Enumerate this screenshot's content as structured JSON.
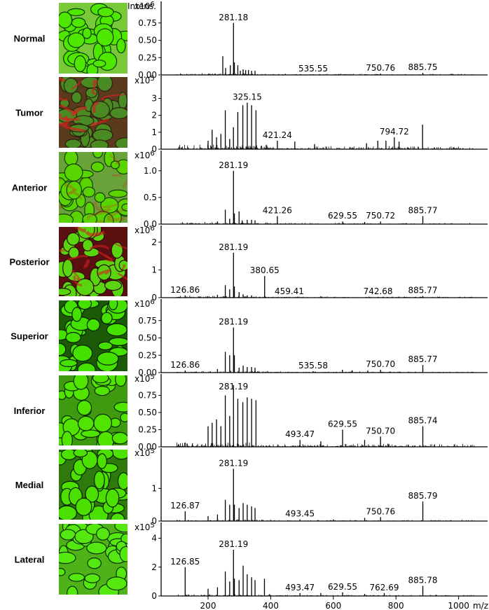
{
  "figure": {
    "intensity_label": "Intens.",
    "mz_label": "m/z"
  },
  "chart_data": [
    {
      "type": "bar",
      "title": "Normal",
      "ylabel": "Intens.",
      "y_exponent": "x10",
      "y_exponent_power": "6",
      "ylim": [
        0,
        1.0
      ],
      "y_ticks": [
        0.0,
        0.25,
        0.5,
        0.75
      ],
      "y_tick_labels": [
        "0.00",
        "0.25",
        "0.50",
        "0.75"
      ],
      "xlim": [
        40,
        1060
      ],
      "series": [
        {
          "name": "Normal",
          "x": [
            247,
            256,
            271,
            281.18,
            284,
            295,
            303,
            312,
            320,
            329,
            339,
            350,
            535.55,
            620,
            700,
            750.76,
            885.75
          ],
          "values": [
            0.27,
            0.1,
            0.14,
            0.75,
            0.18,
            0.14,
            0.06,
            0.08,
            0.07,
            0.07,
            0.06,
            0.06,
            0.01,
            0.01,
            0.01,
            0.02,
            0.03
          ]
        }
      ],
      "peak_labels": [
        {
          "x": 281.18,
          "text": "281.18"
        },
        {
          "x": 535.55,
          "text": "535.55"
        },
        {
          "x": 750.76,
          "text": "750.76"
        },
        {
          "x": 885.75,
          "text": "885.75"
        }
      ]
    },
    {
      "type": "bar",
      "title": "Tumor",
      "ylabel": "Intens.",
      "y_exponent": "x10",
      "y_exponent_power": "5",
      "ylim": [
        0,
        4.1
      ],
      "y_ticks": [
        0,
        1,
        2,
        3
      ],
      "y_tick_labels": [
        "0",
        "1",
        "2",
        "3"
      ],
      "xlim": [
        40,
        1060
      ],
      "series": [
        {
          "name": "Tumor",
          "x": [
            200,
            213,
            227,
            241,
            255,
            269,
            281,
            295,
            311,
            325.15,
            339,
            353,
            421.24,
            477,
            540,
            706,
            742,
            768,
            794.72,
            810,
            885
          ],
          "values": [
            0.5,
            1.15,
            0.7,
            0.9,
            2.3,
            0.6,
            1.3,
            2.2,
            2.6,
            2.75,
            2.6,
            2.3,
            0.5,
            0.45,
            0.3,
            0.35,
            0.5,
            0.5,
            0.7,
            0.45,
            1.45
          ]
        }
      ],
      "peak_labels": [
        {
          "x": 325.15,
          "text": "325.15"
        },
        {
          "x": 421.24,
          "text": "421.24"
        },
        {
          "x": 794.72,
          "text": "794.72"
        }
      ]
    },
    {
      "type": "bar",
      "title": "Anterior",
      "ylabel": "Intens.",
      "y_exponent": "x10",
      "y_exponent_power": "6",
      "ylim": [
        0,
        1.3
      ],
      "y_ticks": [
        0.0,
        0.5,
        1.0
      ],
      "y_tick_labels": [
        "0.0",
        "0.5",
        "1.0"
      ],
      "xlim": [
        40,
        1060
      ],
      "series": [
        {
          "name": "Anterior",
          "x": [
            230,
            255,
            269,
            281.19,
            284,
            299,
            309,
            325,
            339,
            350,
            421.26,
            629.55,
            700,
            750.72,
            885.77
          ],
          "values": [
            0.05,
            0.27,
            0.1,
            1.0,
            0.2,
            0.24,
            0.07,
            0.08,
            0.08,
            0.07,
            0.15,
            0.05,
            0.04,
            0.05,
            0.15
          ]
        }
      ],
      "peak_labels": [
        {
          "x": 281.19,
          "text": "281.19"
        },
        {
          "x": 421.26,
          "text": "421.26"
        },
        {
          "x": 629.55,
          "text": "629.55"
        },
        {
          "x": 750.72,
          "text": "750.72"
        },
        {
          "x": 885.77,
          "text": "885.77"
        }
      ]
    },
    {
      "type": "bar",
      "title": "Posterior",
      "ylabel": "Intens.",
      "y_exponent": "x10",
      "y_exponent_power": "6",
      "ylim": [
        0,
        2.45
      ],
      "y_ticks": [
        0,
        1,
        2
      ],
      "y_tick_labels": [
        "0",
        "1",
        "2"
      ],
      "xlim": [
        40,
        1060
      ],
      "series": [
        {
          "name": "Posterior",
          "x": [
            126.86,
            230,
            255,
            269,
            281.19,
            284,
            299,
            312,
            325,
            339,
            380.65,
            459.41,
            560,
            742.68,
            885.77
          ],
          "values": [
            0.08,
            0.1,
            0.45,
            0.3,
            1.62,
            0.4,
            0.2,
            0.12,
            0.08,
            0.08,
            0.78,
            0.03,
            0.05,
            0.03,
            0.06
          ]
        }
      ],
      "peak_labels": [
        {
          "x": 126.86,
          "text": "126.86"
        },
        {
          "x": 281.19,
          "text": "281.19"
        },
        {
          "x": 380.65,
          "text": "380.65"
        },
        {
          "x": 459.41,
          "text": "459.41"
        },
        {
          "x": 742.68,
          "text": "742.68"
        },
        {
          "x": 885.77,
          "text": "885.77"
        }
      ]
    },
    {
      "type": "bar",
      "title": "Superior",
      "ylabel": "Intens.",
      "y_exponent": "x10",
      "y_exponent_power": "6",
      "ylim": [
        0,
        1.0
      ],
      "y_ticks": [
        0.0,
        0.25,
        0.5,
        0.75
      ],
      "y_tick_labels": [
        "0.00",
        "0.25",
        "0.50",
        "0.75"
      ],
      "xlim": [
        40,
        1060
      ],
      "series": [
        {
          "name": "Superior",
          "x": [
            126.86,
            230,
            255,
            269,
            281.19,
            284,
            299,
            312,
            325,
            339,
            350,
            535.58,
            629,
            660,
            710,
            750.7,
            885.77
          ],
          "values": [
            0.03,
            0.05,
            0.3,
            0.25,
            0.65,
            0.25,
            0.07,
            0.1,
            0.08,
            0.08,
            0.07,
            0.02,
            0.04,
            0.03,
            0.03,
            0.04,
            0.11
          ]
        }
      ],
      "peak_labels": [
        {
          "x": 126.86,
          "text": "126.86"
        },
        {
          "x": 281.19,
          "text": "281.19"
        },
        {
          "x": 535.58,
          "text": "535.58"
        },
        {
          "x": 750.7,
          "text": "750.70"
        },
        {
          "x": 885.77,
          "text": "885.77"
        }
      ]
    },
    {
      "type": "bar",
      "title": "Inferior",
      "ylabel": "Intens.",
      "y_exponent": "x10",
      "y_exponent_power": "5",
      "ylim": [
        0,
        1.0
      ],
      "y_ticks": [
        0.0,
        0.25,
        0.5,
        0.75
      ],
      "y_tick_labels": [
        "0.00",
        "0.25",
        "0.50",
        "0.75"
      ],
      "xlim": [
        40,
        1060
      ],
      "series": [
        {
          "name": "Inferior",
          "x": [
            150,
            200,
            213,
            227,
            241,
            255,
            269,
            281.19,
            295,
            311,
            325,
            339,
            353,
            493.47,
            560,
            629.55,
            700,
            750.7,
            885.74
          ],
          "values": [
            0.05,
            0.3,
            0.35,
            0.4,
            0.3,
            0.75,
            0.45,
            0.9,
            0.7,
            0.65,
            0.72,
            0.7,
            0.68,
            0.1,
            0.08,
            0.25,
            0.1,
            0.15,
            0.3
          ]
        }
      ],
      "peak_labels": [
        {
          "x": 281.19,
          "text": "281.19"
        },
        {
          "x": 493.47,
          "text": "493.47"
        },
        {
          "x": 629.55,
          "text": "629.55"
        },
        {
          "x": 750.7,
          "text": "750.70"
        },
        {
          "x": 885.74,
          "text": "885.74"
        }
      ]
    },
    {
      "type": "bar",
      "title": "Medial",
      "ylabel": "Intens.",
      "y_exponent": "x10",
      "y_exponent_power": "5",
      "ylim": [
        0,
        2.1
      ],
      "y_ticks": [
        0,
        1
      ],
      "y_tick_labels": [
        "0",
        "1"
      ],
      "xlim": [
        40,
        1060
      ],
      "series": [
        {
          "name": "Medial",
          "x": [
            126.87,
            200,
            230,
            255,
            269,
            281.19,
            284,
            299,
            312,
            325,
            339,
            350,
            493.45,
            600,
            700,
            750.76,
            885.79
          ],
          "values": [
            0.3,
            0.15,
            0.2,
            0.65,
            0.5,
            1.6,
            0.5,
            0.4,
            0.55,
            0.5,
            0.45,
            0.4,
            0.05,
            0.05,
            0.1,
            0.12,
            0.6
          ]
        }
      ],
      "peak_labels": [
        {
          "x": 126.87,
          "text": "126.87"
        },
        {
          "x": 281.19,
          "text": "281.19"
        },
        {
          "x": 493.45,
          "text": "493.45"
        },
        {
          "x": 750.76,
          "text": "750.76"
        },
        {
          "x": 885.79,
          "text": "885.79"
        }
      ]
    },
    {
      "type": "bar",
      "title": "Lateral",
      "ylabel": "Intens.",
      "y_exponent": "x10",
      "y_exponent_power": "5",
      "ylim": [
        0,
        4.8
      ],
      "y_ticks": [
        0,
        2,
        4
      ],
      "y_tick_labels": [
        "0",
        "2",
        "4"
      ],
      "xlim": [
        40,
        1060
      ],
      "xticks": [
        200,
        400,
        600,
        800,
        1000
      ],
      "xtick_labels": [
        "200",
        "400",
        "600",
        "800",
        "1000"
      ],
      "xlabel": "m/z",
      "series": [
        {
          "name": "Lateral",
          "x": [
            126.85,
            200,
            230,
            255,
            269,
            281.19,
            284,
            299,
            312,
            325,
            339,
            350,
            380,
            493.47,
            560,
            629.55,
            700,
            762.69,
            885.78
          ],
          "values": [
            2.0,
            0.5,
            0.6,
            1.7,
            1.0,
            3.2,
            1.2,
            1.1,
            2.1,
            1.5,
            1.3,
            1.1,
            1.2,
            0.2,
            0.2,
            0.25,
            0.15,
            0.2,
            0.7
          ]
        }
      ],
      "peak_labels": [
        {
          "x": 126.85,
          "text": "126.85"
        },
        {
          "x": 281.19,
          "text": "281.19"
        },
        {
          "x": 493.47,
          "text": "493.47"
        },
        {
          "x": 629.55,
          "text": "629.55"
        },
        {
          "x": 762.69,
          "text": "762.69"
        },
        {
          "x": 885.78,
          "text": "885.78"
        }
      ]
    }
  ]
}
